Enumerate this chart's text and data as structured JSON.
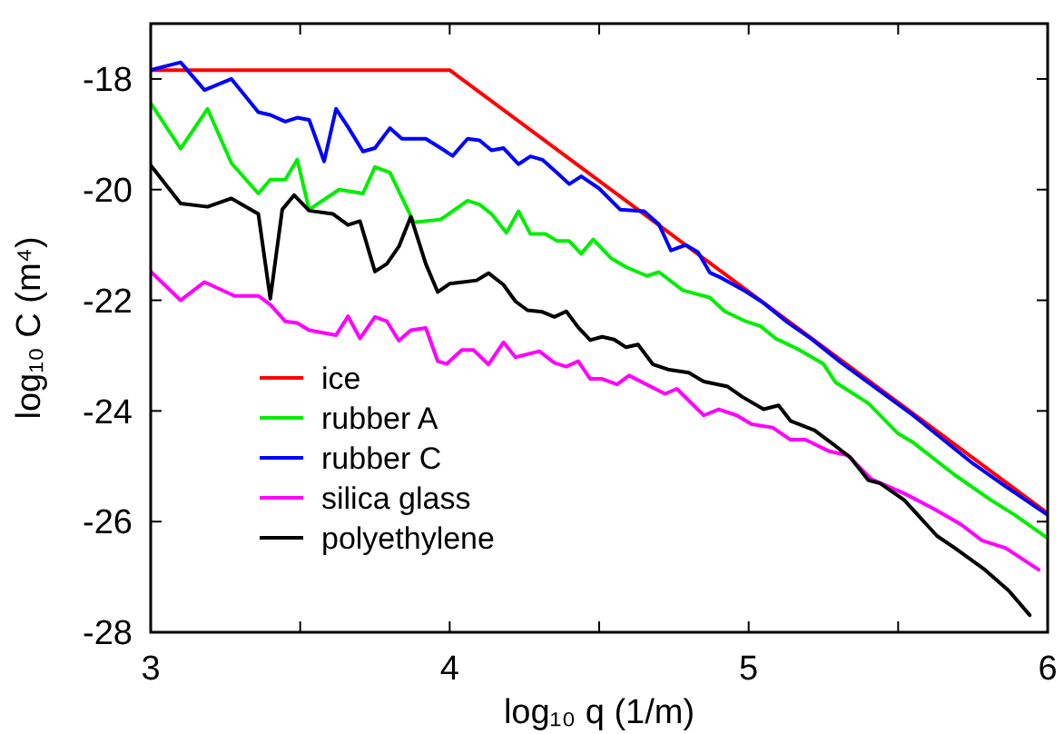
{
  "chart_data": {
    "type": "line",
    "xlabel": "log₁₀ q  (1/m)",
    "ylabel": "log₁₀ C  (m⁴)",
    "xlim": [
      3,
      6
    ],
    "ylim": [
      -28,
      -17
    ],
    "xticks": [
      3,
      {
        "value": 3.5,
        "label": null
      },
      4,
      {
        "value": 4.5,
        "label": null
      },
      5,
      {
        "value": 5.5,
        "label": null
      },
      6
    ],
    "yticks": [
      -28,
      -26,
      -24,
      -22,
      -20,
      -18
    ],
    "legend": "bottom left",
    "grid": false,
    "line_style": "solid",
    "marker": "none",
    "series": [
      {
        "name": "ice",
        "color": "#ff0000",
        "x": [
          3,
          4,
          6
        ],
        "values": [
          -17.84,
          -17.84,
          -25.85
        ]
      },
      {
        "name": "rubber A",
        "color": "#00ee00",
        "x": [
          3,
          3.1,
          3.19,
          3.27,
          3.36,
          3.4,
          3.45,
          3.49,
          3.53,
          3.63,
          3.71,
          3.75,
          3.8,
          3.88,
          3.97,
          4.06,
          4.1,
          4.14,
          4.19,
          4.23,
          4.27,
          4.32,
          4.36,
          4.4,
          4.44,
          4.48,
          4.54,
          4.59,
          4.66,
          4.7,
          4.78,
          4.87,
          4.92,
          4.99,
          5.04,
          5.09,
          5.16,
          5.25,
          5.29,
          5.4,
          5.5,
          5.55,
          5.69,
          5.81,
          5.89,
          6
        ],
        "values": [
          -18.44,
          -19.26,
          -18.54,
          -19.52,
          -20.07,
          -19.82,
          -19.82,
          -19.46,
          -20.36,
          -20,
          -20.07,
          -19.59,
          -19.69,
          -20.59,
          -20.54,
          -20.2,
          -20.27,
          -20.44,
          -20.78,
          -20.39,
          -20.8,
          -20.8,
          -20.93,
          -20.93,
          -21.16,
          -20.9,
          -21.24,
          -21.4,
          -21.56,
          -21.49,
          -21.82,
          -21.95,
          -22.2,
          -22.38,
          -22.47,
          -22.69,
          -22.87,
          -23.15,
          -23.48,
          -23.86,
          -24.41,
          -24.57,
          -25.16,
          -25.61,
          -25.88,
          -26.3
        ]
      },
      {
        "name": "rubber C",
        "color": "#0000ff",
        "x": [
          3,
          3.1,
          3.18,
          3.27,
          3.36,
          3.4,
          3.45,
          3.49,
          3.53,
          3.58,
          3.62,
          3.66,
          3.71,
          3.75,
          3.8,
          3.84,
          3.92,
          3.97,
          4.01,
          4.06,
          4.1,
          4.14,
          4.18,
          4.23,
          4.27,
          4.31,
          4.36,
          4.4,
          4.44,
          4.5,
          4.57,
          4.65,
          4.7,
          4.74,
          4.79,
          4.83,
          4.87,
          4.91,
          4.99,
          5.05,
          5.13,
          5.21,
          5.31,
          5.55,
          5.75,
          5.85,
          6
        ],
        "values": [
          -17.84,
          -17.7,
          -18.2,
          -18,
          -18.6,
          -18.65,
          -18.77,
          -18.7,
          -18.74,
          -19.49,
          -18.54,
          -18.87,
          -19.31,
          -19.25,
          -18.89,
          -19.08,
          -19.08,
          -19.25,
          -19.39,
          -19.08,
          -19.11,
          -19.29,
          -19.25,
          -19.54,
          -19.4,
          -19.46,
          -19.7,
          -19.9,
          -19.76,
          -19.98,
          -20.36,
          -20.39,
          -20.63,
          -21.1,
          -21,
          -21.13,
          -21.5,
          -21.6,
          -21.84,
          -22.05,
          -22.4,
          -22.7,
          -23.13,
          -24.08,
          -24.95,
          -25.33,
          -25.88
        ]
      },
      {
        "name": "silica glass",
        "color": "#ff00ff",
        "x": [
          3,
          3.1,
          3.18,
          3.28,
          3.36,
          3.4,
          3.45,
          3.49,
          3.53,
          3.62,
          3.66,
          3.7,
          3.75,
          3.79,
          3.83,
          3.87,
          3.92,
          3.96,
          3.99,
          4.04,
          4.08,
          4.13,
          4.18,
          4.22,
          4.3,
          4.35,
          4.39,
          4.43,
          4.47,
          4.51,
          4.56,
          4.6,
          4.72,
          4.76,
          4.85,
          4.9,
          4.96,
          5.01,
          5.08,
          5.14,
          5.19,
          5.27,
          5.33,
          5.41,
          5.52,
          5.62,
          5.71,
          5.78,
          5.86,
          5.97
        ],
        "values": [
          -21.48,
          -22,
          -21.67,
          -21.92,
          -21.92,
          -22.08,
          -22.38,
          -22.41,
          -22.54,
          -22.63,
          -22.29,
          -22.69,
          -22.3,
          -22.38,
          -22.73,
          -22.54,
          -22.5,
          -23.1,
          -23.15,
          -22.9,
          -22.9,
          -23.16,
          -22.76,
          -23.03,
          -22.92,
          -23.13,
          -23.2,
          -23.1,
          -23.42,
          -23.42,
          -23.52,
          -23.36,
          -23.69,
          -23.6,
          -24.08,
          -23.97,
          -24.08,
          -24.24,
          -24.3,
          -24.52,
          -24.52,
          -24.73,
          -24.8,
          -25.23,
          -25.49,
          -25.77,
          -26.05,
          -26.34,
          -26.48,
          -26.87
        ]
      },
      {
        "name": "polyethylene",
        "color": "#000000",
        "x": [
          3,
          3.1,
          3.19,
          3.27,
          3.36,
          3.4,
          3.44,
          3.48,
          3.53,
          3.61,
          3.66,
          3.7,
          3.75,
          3.79,
          3.83,
          3.87,
          3.92,
          3.96,
          4,
          4.09,
          4.13,
          4.18,
          4.22,
          4.26,
          4.31,
          4.35,
          4.39,
          4.43,
          4.47,
          4.51,
          4.55,
          4.59,
          4.63,
          4.68,
          4.73,
          4.8,
          4.85,
          4.93,
          4.98,
          5.05,
          5.1,
          5.14,
          5.22,
          5.28,
          5.34,
          5.4,
          5.44,
          5.52,
          5.63,
          5.69,
          5.79,
          5.87,
          5.94
        ],
        "values": [
          -19.56,
          -20.25,
          -20.31,
          -20.16,
          -20.44,
          -21.97,
          -20.36,
          -20.1,
          -20.38,
          -20.44,
          -20.64,
          -20.57,
          -21.48,
          -21.34,
          -21.03,
          -20.49,
          -21.34,
          -21.85,
          -21.7,
          -21.64,
          -21.51,
          -21.72,
          -22.02,
          -22.18,
          -22.21,
          -22.3,
          -22.2,
          -22.49,
          -22.72,
          -22.66,
          -22.71,
          -22.85,
          -22.8,
          -23.16,
          -23.25,
          -23.31,
          -23.47,
          -23.56,
          -23.75,
          -23.97,
          -23.9,
          -24.18,
          -24.35,
          -24.59,
          -24.84,
          -25.25,
          -25.31,
          -25.61,
          -26.26,
          -26.48,
          -26.87,
          -27.25,
          -27.69
        ]
      }
    ]
  }
}
